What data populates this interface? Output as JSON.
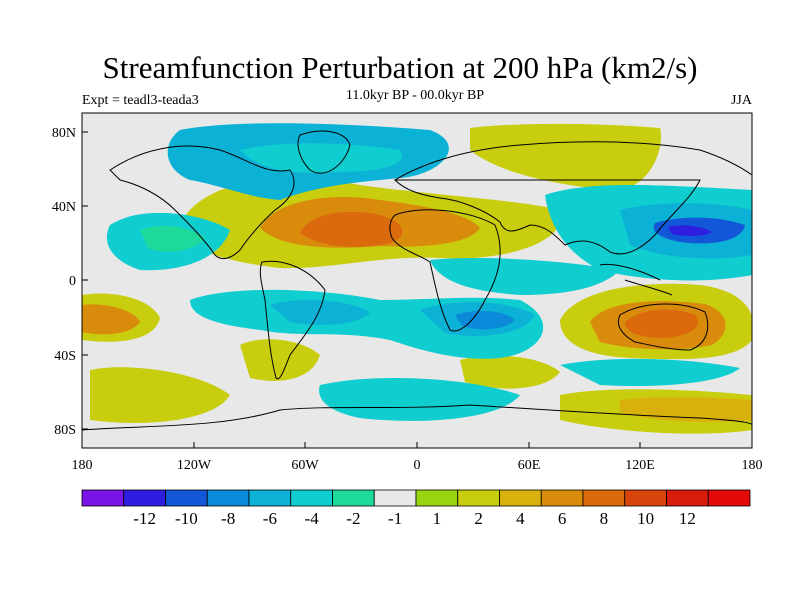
{
  "title": "Streamfunction Perturbation at 200 hPa (km2/s)",
  "subtitle": "11.0kyr BP - 00.0kyr BP",
  "left_string": "Expt = teadl3-teada3",
  "right_string": "JJA",
  "x_ticks": [
    "180",
    "120W",
    "60W",
    "0",
    "60E",
    "120E",
    "180"
  ],
  "y_ticks": [
    "80N",
    "40N",
    "0",
    "40S",
    "80S"
  ],
  "colorbar": {
    "colors": [
      "#7a13e6",
      "#2d1ee0",
      "#1257d8",
      "#0a8ad8",
      "#0cb1d6",
      "#10cdd0",
      "#1dd99b",
      "#e8e8e8",
      "#99d411",
      "#c8cd0d",
      "#d8b10c",
      "#d98c0c",
      "#da6a0c",
      "#d9440c",
      "#d81c0c",
      "#e30a0a"
    ],
    "labels": [
      "-12",
      "-10",
      "-8",
      "-6",
      "-4",
      "-2",
      "-1",
      "1",
      "2",
      "4",
      "6",
      "8",
      "10",
      "12"
    ]
  },
  "chart_data": {
    "type": "filled-contour map",
    "projection": "cylindrical equidistant",
    "xlim": [
      -180,
      180
    ],
    "ylim": [
      -90,
      90
    ],
    "levels": [
      -12,
      -10,
      -8,
      -6,
      -4,
      -2,
      -1,
      1,
      2,
      4,
      6,
      8,
      10,
      12
    ],
    "units": "km2/s",
    "season": "JJA",
    "features": [
      {
        "lon": -30,
        "lat": 25,
        "value": 9
      },
      {
        "lon": 35,
        "lat": 22,
        "value": 5
      },
      {
        "lon": 145,
        "lat": 27,
        "value": -9
      },
      {
        "lon": 130,
        "lat": -22,
        "value": 8
      },
      {
        "lon": -170,
        "lat": -22,
        "value": 6
      },
      {
        "lon": -50,
        "lat": -15,
        "value": -4
      },
      {
        "lon": 20,
        "lat": -22,
        "value": -4
      },
      {
        "lon": 100,
        "lat": 0,
        "value": -3
      },
      {
        "lon": -100,
        "lat": 5,
        "value": -2
      },
      {
        "lon": 40,
        "lat": -40,
        "value": 2
      },
      {
        "lon": 80,
        "lat": 75,
        "value": 4
      },
      {
        "lon": -40,
        "lat": 70,
        "value": -3
      },
      {
        "lon": -90,
        "lat": -40,
        "value": 3
      },
      {
        "lon": -140,
        "lat": -58,
        "value": 4
      }
    ]
  }
}
